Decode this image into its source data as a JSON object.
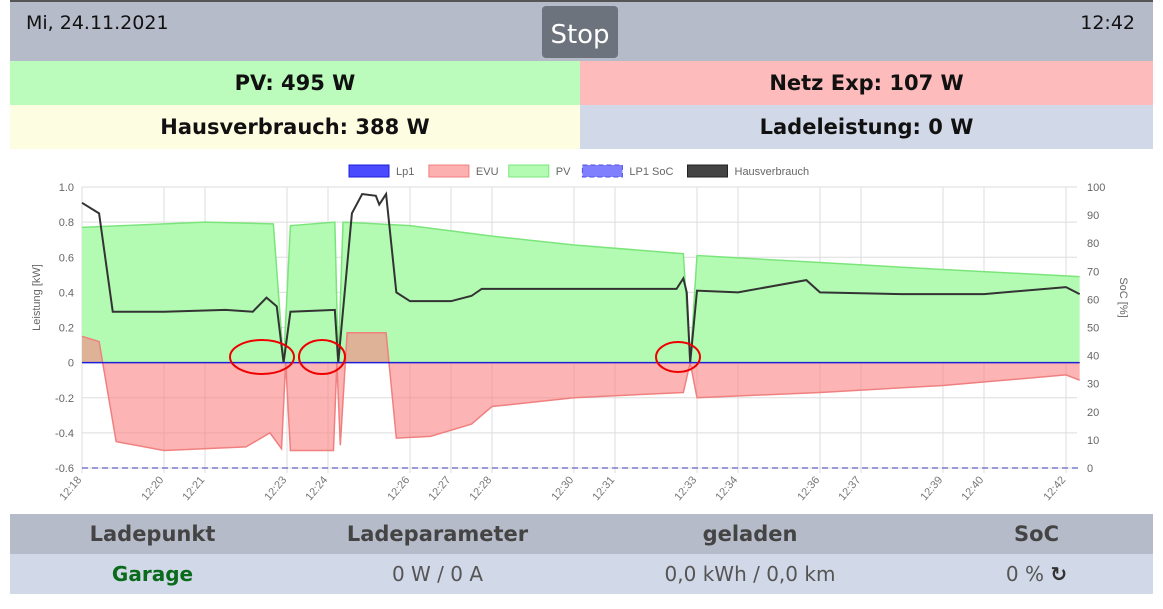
{
  "header": {
    "date": "Mi, 24.11.2021",
    "time": "12:42",
    "stop_label": "Stop"
  },
  "summary": {
    "pv": "PV: 495 W",
    "netz": "Netz Exp: 107 W",
    "haus": "Hausverbrauch: 388 W",
    "lade": "Ladeleistung: 0 W"
  },
  "colors": {
    "pv_bg": "#bbfcbc",
    "netz_bg": "#fdbbbb",
    "haus_bg": "#fdfde1",
    "lade_bg": "#d1d8e7",
    "header_bg": "#b6bbc9"
  },
  "chart_data": {
    "type": "area",
    "legend": [
      "Lp1",
      "EVU",
      "PV",
      "LP1 SoC",
      "Hausverbrauch"
    ],
    "legend_position": "top",
    "ylabel": "Leistung [kW]",
    "y2label": "SoC [%]",
    "ylim": [
      -0.6,
      1.0
    ],
    "y2lim": [
      0,
      100
    ],
    "yticks": [
      "1.0",
      "0.8",
      "0.6",
      "0.4",
      "0.2",
      "0",
      "-0.2",
      "-0.4",
      "-0.6"
    ],
    "y2ticks": [
      "100",
      "90",
      "80",
      "70",
      "60",
      "50",
      "40",
      "30",
      "20",
      "10",
      "0"
    ],
    "xticks": [
      "12:18",
      "12:20",
      "12:21",
      "12:23",
      "12:24",
      "12:26",
      "12:27",
      "12:28",
      "12:30",
      "12:31",
      "12:33",
      "12:34",
      "12:36",
      "12:37",
      "12:39",
      "12:40",
      "12:42"
    ],
    "grid": true,
    "series": [
      {
        "name": "PV",
        "color": "#7be57b",
        "fill": "#b3fbb3",
        "points": [
          [
            "12:18:00",
            0.77
          ],
          [
            "12:19:00",
            0.78
          ],
          [
            "12:21:00",
            0.8
          ],
          [
            "12:22:40",
            0.79
          ],
          [
            "12:22:55",
            0.0
          ],
          [
            "12:23:05",
            0.78
          ],
          [
            "12:24:10",
            0.8
          ],
          [
            "12:24:15",
            0.0
          ],
          [
            "12:24:22",
            0.8
          ],
          [
            "12:26:00",
            0.78
          ],
          [
            "12:28:00",
            0.72
          ],
          [
            "12:30:00",
            0.67
          ],
          [
            "12:32:40",
            0.62
          ],
          [
            "12:32:50",
            0.0
          ],
          [
            "12:33:00",
            0.61
          ],
          [
            "12:36:00",
            0.57
          ],
          [
            "12:39:00",
            0.53
          ],
          [
            "12:42:20",
            0.49
          ]
        ]
      },
      {
        "name": "EVU",
        "color": "#f08080",
        "fill": "rgba(250,130,130,0.6)",
        "points": [
          [
            "12:18:00",
            0.15
          ],
          [
            "12:18:25",
            0.12
          ],
          [
            "12:18:50",
            -0.45
          ],
          [
            "12:20:00",
            -0.5
          ],
          [
            "12:22:00",
            -0.48
          ],
          [
            "12:22:35",
            -0.4
          ],
          [
            "12:22:52",
            -0.49
          ],
          [
            "12:22:58",
            0.0
          ],
          [
            "12:23:05",
            -0.5
          ],
          [
            "12:24:08",
            -0.5
          ],
          [
            "12:24:13",
            0.0
          ],
          [
            "12:24:18",
            -0.47
          ],
          [
            "12:24:28",
            0.17
          ],
          [
            "12:25:25",
            0.17
          ],
          [
            "12:25:40",
            -0.43
          ],
          [
            "12:26:30",
            -0.42
          ],
          [
            "12:27:30",
            -0.35
          ],
          [
            "12:28:00",
            -0.25
          ],
          [
            "12:30:00",
            -0.2
          ],
          [
            "12:32:40",
            -0.17
          ],
          [
            "12:32:50",
            0.0
          ],
          [
            "12:33:00",
            -0.2
          ],
          [
            "12:36:00",
            -0.17
          ],
          [
            "12:39:00",
            -0.13
          ],
          [
            "12:42:00",
            -0.07
          ],
          [
            "12:42:20",
            -0.1
          ]
        ]
      },
      {
        "name": "Hausverbrauch",
        "color": "#333333",
        "points": [
          [
            "12:18:00",
            0.91
          ],
          [
            "12:18:25",
            0.85
          ],
          [
            "12:18:45",
            0.29
          ],
          [
            "12:20:00",
            0.29
          ],
          [
            "12:21:30",
            0.3
          ],
          [
            "12:22:10",
            0.29
          ],
          [
            "12:22:30",
            0.37
          ],
          [
            "12:22:45",
            0.32
          ],
          [
            "12:22:55",
            0.0
          ],
          [
            "12:23:05",
            0.29
          ],
          [
            "12:24:10",
            0.3
          ],
          [
            "12:24:15",
            0.0
          ],
          [
            "12:24:35",
            0.85
          ],
          [
            "12:24:50",
            0.96
          ],
          [
            "12:25:10",
            0.95
          ],
          [
            "12:25:15",
            0.9
          ],
          [
            "12:25:25",
            0.96
          ],
          [
            "12:25:40",
            0.4
          ],
          [
            "12:26:00",
            0.35
          ],
          [
            "12:27:00",
            0.35
          ],
          [
            "12:27:30",
            0.38
          ],
          [
            "12:27:45",
            0.42
          ],
          [
            "12:29:00",
            0.42
          ],
          [
            "12:31:00",
            0.42
          ],
          [
            "12:32:30",
            0.42
          ],
          [
            "12:32:40",
            0.48
          ],
          [
            "12:32:45",
            0.4
          ],
          [
            "12:32:50",
            0.0
          ],
          [
            "12:33:00",
            0.41
          ],
          [
            "12:34:00",
            0.4
          ],
          [
            "12:35:40",
            0.47
          ],
          [
            "12:36:00",
            0.4
          ],
          [
            "12:38:00",
            0.39
          ],
          [
            "12:40:00",
            0.39
          ],
          [
            "12:42:00",
            0.43
          ],
          [
            "12:42:20",
            0.39
          ]
        ]
      },
      {
        "name": "Lp1",
        "color": "#1f1fd8",
        "points": [
          [
            "12:18:00",
            0
          ],
          [
            "12:42:20",
            0
          ]
        ]
      },
      {
        "name": "LP1 SoC",
        "color": "#7a7acc",
        "dashed": true,
        "axis": "y2",
        "points": [
          [
            "12:18:00",
            0
          ],
          [
            "12:42:20",
            0
          ]
        ]
      }
    ]
  },
  "table": {
    "headers": [
      "Ladepunkt",
      "Ladeparameter",
      "geladen",
      "SoC"
    ],
    "row": {
      "name": "Garage",
      "param": "0 W / 0 A",
      "charged": "0,0 kWh / 0,0 km",
      "soc": "0 %",
      "refresh_icon": "refresh-icon"
    }
  }
}
